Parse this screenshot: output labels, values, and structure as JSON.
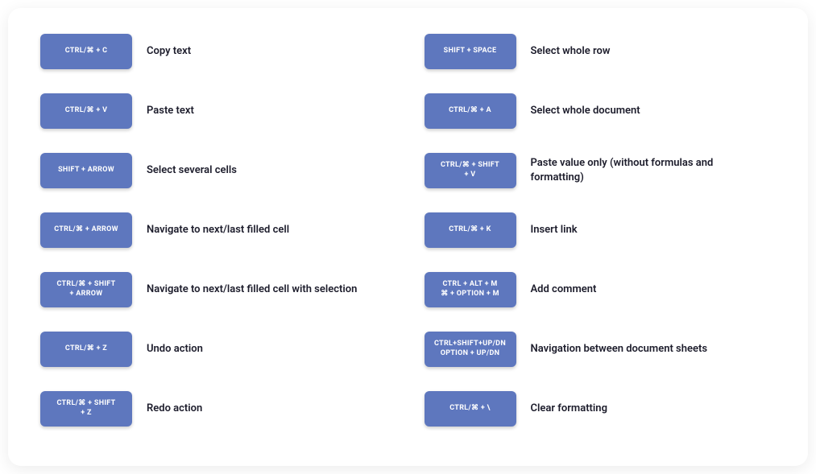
{
  "card": {
    "background_color": "#ffffff",
    "border_radius": 16,
    "shadow": "0 4px 20px rgba(0,0,0,0.08)"
  },
  "key_style": {
    "background_color": "#5e77be",
    "text_color": "#ffffff",
    "font_size": 9,
    "font_weight": 700,
    "border_radius": 6,
    "width": 114,
    "height": 44
  },
  "desc_style": {
    "font_size": 13,
    "font_weight": 600,
    "text_color": "#1d1d2c"
  },
  "left_column": [
    {
      "key": "CTRL/⌘ + C",
      "desc": "Copy text"
    },
    {
      "key": "CTRL/⌘ + V",
      "desc": "Paste text"
    },
    {
      "key": "SHIFT + ARROW",
      "desc": "Select several cells"
    },
    {
      "key": "CTRL/⌘ + ARROW",
      "desc": "Navigate to next/last filled cell"
    },
    {
      "key": "CTRL/⌘ + SHIFT\n+ ARROW",
      "desc": "Navigate to next/last filled cell with selection"
    },
    {
      "key": "CTRL/⌘ + Z",
      "desc": "Undo action"
    },
    {
      "key": "CTRL/⌘ + SHIFT\n+ Z",
      "desc": "Redo action"
    }
  ],
  "right_column": [
    {
      "key": "SHIFT + SPACE",
      "desc": "Select whole row"
    },
    {
      "key": "CTRL/⌘ + A",
      "desc": "Select whole document"
    },
    {
      "key": "CTRL/⌘ + SHIFT\n+ V",
      "desc": "Paste value only (without formulas and formatting)"
    },
    {
      "key": "CTRL/⌘ + K",
      "desc": "Insert link"
    },
    {
      "key": "CTRL + ALT + M\n⌘ + OPTION + M",
      "desc": "Add comment"
    },
    {
      "key": "CTRL+SHIFT+UP/DN\nOPTION + UP/DN",
      "desc": "Navigation between document sheets"
    },
    {
      "key": "CTRL/⌘ + \\",
      "desc": "Clear formatting"
    }
  ]
}
